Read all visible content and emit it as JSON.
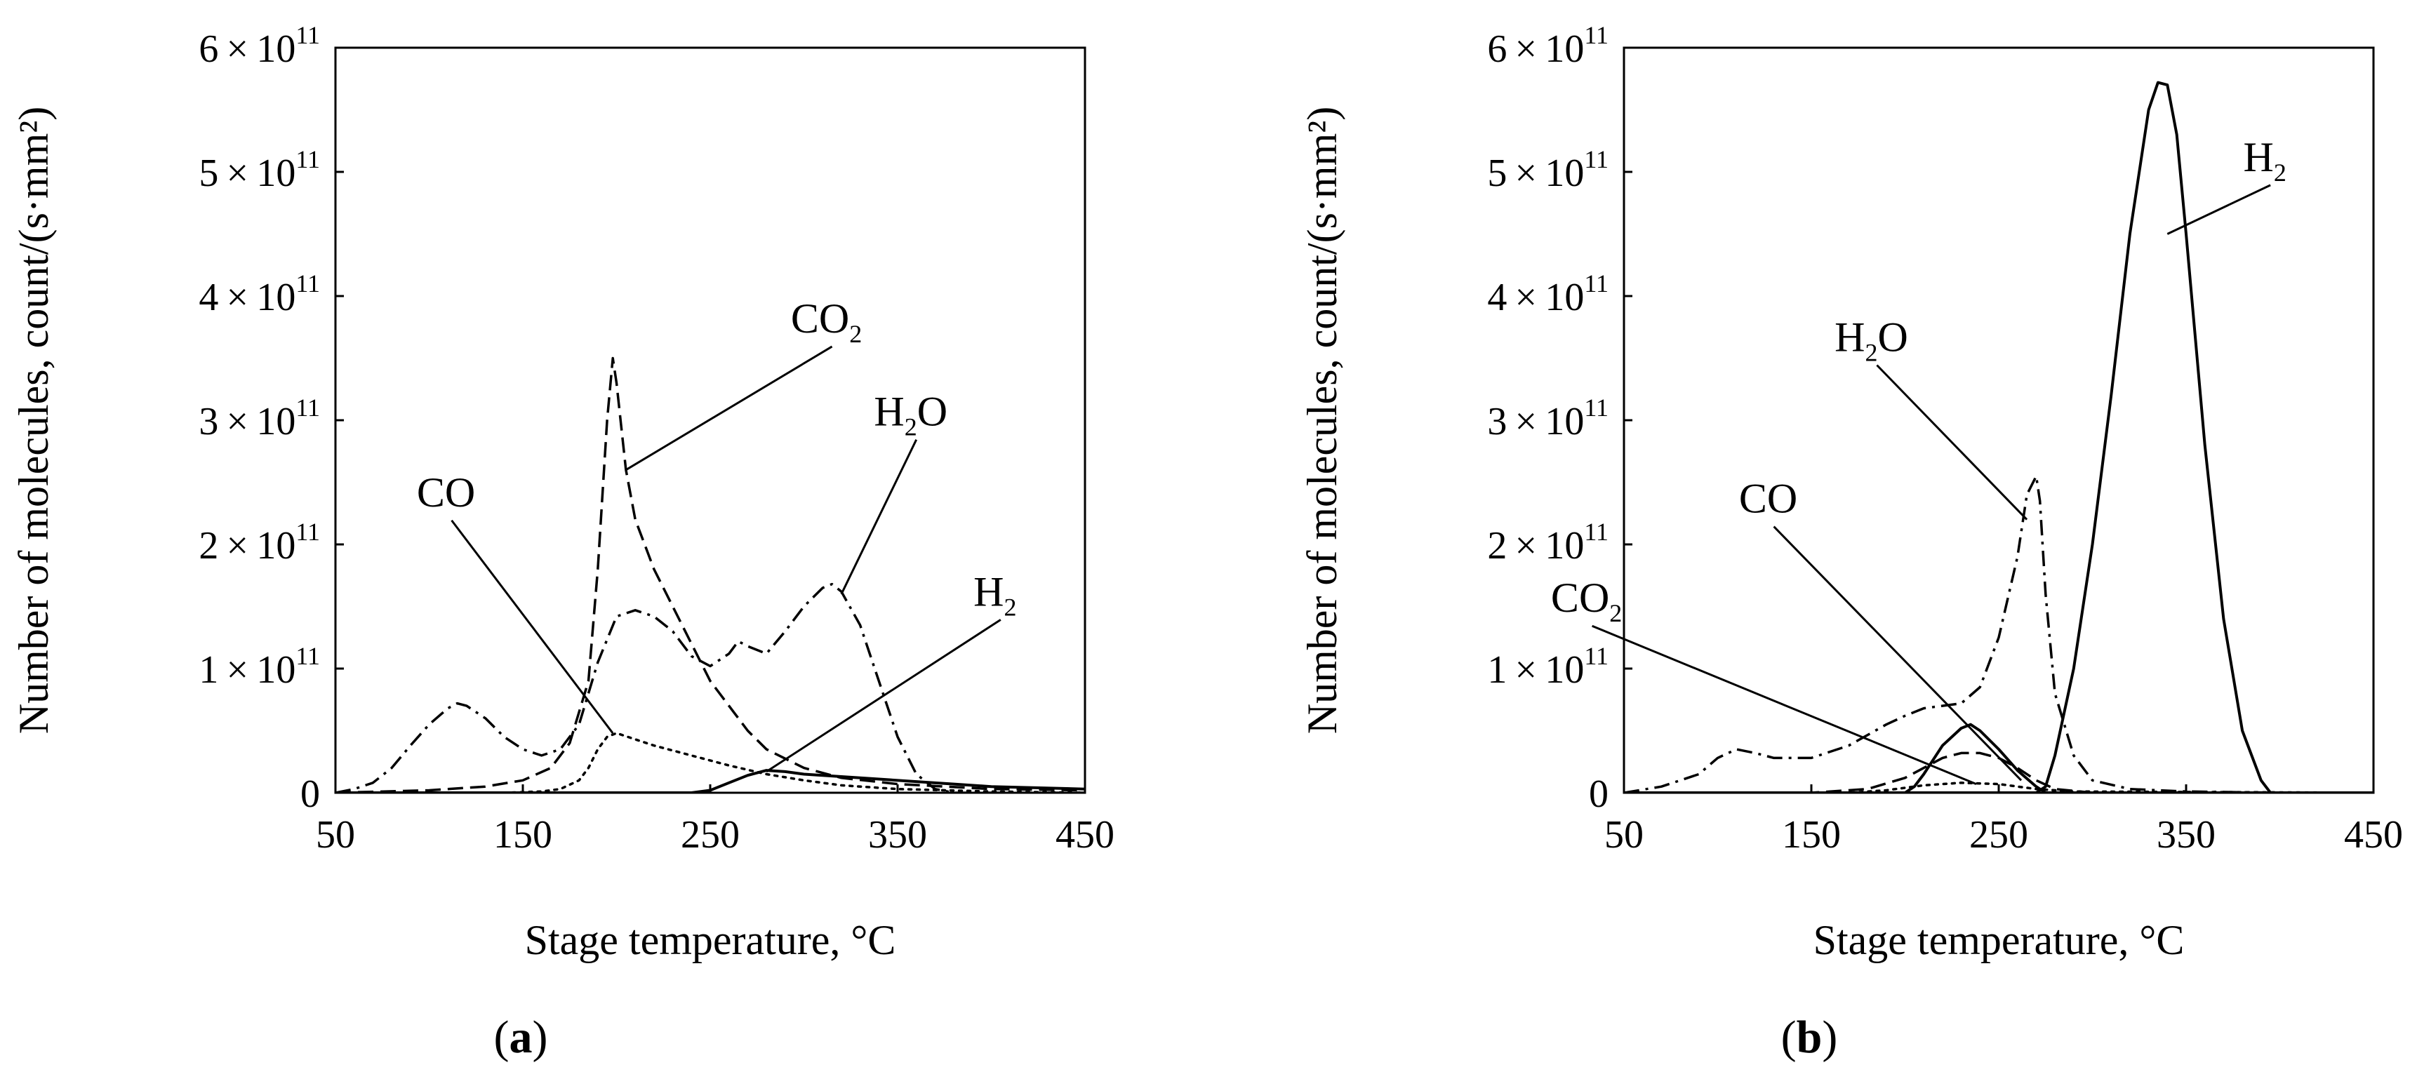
{
  "chart_data": [
    {
      "type": "line",
      "panel_label": "(a)",
      "panel_letter": "a",
      "xlabel": "Stage temperature, °C",
      "ylabel": "Number of molecules, count/(s·mm²)",
      "xlim": [
        50,
        450
      ],
      "ylim": [
        0,
        600000000000.0
      ],
      "xticks": [
        50,
        150,
        250,
        350,
        450
      ],
      "ytick_values": [
        0,
        100000000000.0,
        200000000000.0,
        300000000000.0,
        400000000000.0,
        500000000000.0,
        600000000000.0
      ],
      "ytick_labels": [
        {
          "mant": "0",
          "exp": ""
        },
        {
          "mant": "1 × 10",
          "exp": "11"
        },
        {
          "mant": "2 × 10",
          "exp": "11"
        },
        {
          "mant": "3 × 10",
          "exp": "11"
        },
        {
          "mant": "4 × 10",
          "exp": "11"
        },
        {
          "mant": "5 × 10",
          "exp": "11"
        },
        {
          "mant": "6 × 10",
          "exp": "11"
        }
      ],
      "grid": false,
      "series": [
        {
          "name": "CO₂",
          "base": "CO",
          "sub": "2",
          "style": "dashed",
          "x": [
            50,
            100,
            130,
            150,
            165,
            175,
            185,
            190,
            195,
            198,
            200,
            205,
            210,
            220,
            230,
            240,
            250,
            260,
            270,
            280,
            300,
            320,
            350,
            400,
            450
          ],
          "y": [
            0,
            2000000000.0,
            5000000000.0,
            10000000000.0,
            20000000000.0,
            40000000000.0,
            90000000000.0,
            180000000000.0,
            300000000000.0,
            350000000000.0,
            330000000000.0,
            260000000000.0,
            220000000000.0,
            180000000000.0,
            150000000000.0,
            120000000000.0,
            90000000000.0,
            70000000000.0,
            50000000000.0,
            35000000000.0,
            20000000000.0,
            12000000000.0,
            7000000000.0,
            3000000000.0,
            2000000000.0
          ]
        },
        {
          "name": "CO",
          "base": "CO",
          "sub": "",
          "style": "dotted",
          "x": [
            50,
            140,
            160,
            170,
            180,
            185,
            190,
            195,
            200,
            210,
            220,
            240,
            260,
            280,
            300,
            320,
            350,
            400,
            450
          ],
          "y": [
            0,
            0,
            1000000000.0,
            3000000000.0,
            10000000000.0,
            20000000000.0,
            35000000000.0,
            45000000000.0,
            48000000000.0,
            43000000000.0,
            38000000000.0,
            30000000000.0,
            22000000000.0,
            15000000000.0,
            10000000000.0,
            6000000000.0,
            3000000000.0,
            1000000000.0,
            0
          ],
          "label_anchor": [
            198,
            48000000000.0
          ]
        },
        {
          "name": "H₂O",
          "base": "H",
          "sub": "2",
          "tail": "O",
          "style": "dashdot",
          "x": [
            50,
            60,
            70,
            80,
            90,
            100,
            110,
            115,
            120,
            130,
            140,
            150,
            160,
            170,
            180,
            190,
            200,
            210,
            220,
            230,
            240,
            250,
            260,
            265,
            270,
            280,
            290,
            300,
            310,
            315,
            320,
            330,
            340,
            350,
            360,
            370,
            380,
            400,
            450
          ],
          "y": [
            0,
            3000000000.0,
            8000000000.0,
            20000000000.0,
            38000000000.0,
            55000000000.0,
            68000000000.0,
            72000000000.0,
            70000000000.0,
            60000000000.0,
            45000000000.0,
            35000000000.0,
            30000000000.0,
            35000000000.0,
            55000000000.0,
            105000000000.0,
            142000000000.0,
            147000000000.0,
            142000000000.0,
            130000000000.0,
            110000000000.0,
            102000000000.0,
            112000000000.0,
            122000000000.0,
            118000000000.0,
            112000000000.0,
            130000000000.0,
            150000000000.0,
            165000000000.0,
            168000000000.0,
            162000000000.0,
            135000000000.0,
            90000000000.0,
            45000000000.0,
            15000000000.0,
            3000000000.0,
            0,
            0,
            0
          ],
          "label_anchor": [
            320,
            160000000000.0
          ]
        },
        {
          "name": "H₂",
          "base": "H",
          "sub": "2",
          "style": "solid",
          "x": [
            50,
            240,
            250,
            260,
            270,
            280,
            290,
            300,
            320,
            340,
            360,
            380,
            400,
            450
          ],
          "y": [
            0,
            0,
            2000000000.0,
            8000000000.0,
            14000000000.0,
            18000000000.0,
            17000000000.0,
            15000000000.0,
            13000000000.0,
            11000000000.0,
            9000000000.0,
            7000000000.0,
            5000000000.0,
            3000000000.0
          ],
          "label_anchor": [
            280,
            17000000000.0
          ]
        }
      ],
      "labels": [
        {
          "base": "CO",
          "sub": "2",
          "anchor": [
            205,
            260000000000.0
          ],
          "text_at": [
            315,
            365000000000.0
          ]
        },
        {
          "base": "CO",
          "sub": "",
          "anchor": [
            198,
            48000000000.0
          ],
          "text_at": [
            112,
            225000000000.0
          ]
        },
        {
          "base": "H",
          "sub": "2",
          "tail": "O",
          "anchor": [
            320,
            160000000000.0
          ],
          "text_at": [
            360,
            290000000000.0
          ]
        },
        {
          "base": "H",
          "sub": "2",
          "anchor": [
            280,
            17000000000.0
          ],
          "text_at": [
            405,
            145000000000.0
          ]
        }
      ]
    },
    {
      "type": "line",
      "panel_label": "(b)",
      "panel_letter": "b",
      "xlabel": "Stage temperature, °C",
      "ylabel": "Number of molecules, count/(s·mm²)",
      "xlim": [
        50,
        450
      ],
      "ylim": [
        0,
        600000000000.0
      ],
      "xticks": [
        50,
        150,
        250,
        350,
        450
      ],
      "ytick_values": [
        0,
        100000000000.0,
        200000000000.0,
        300000000000.0,
        400000000000.0,
        500000000000.0,
        600000000000.0
      ],
      "ytick_labels": [
        {
          "mant": "0",
          "exp": ""
        },
        {
          "mant": "1 × 10",
          "exp": "11"
        },
        {
          "mant": "2 × 10",
          "exp": "11"
        },
        {
          "mant": "3 × 10",
          "exp": "11"
        },
        {
          "mant": "4 × 10",
          "exp": "11"
        },
        {
          "mant": "5 × 10",
          "exp": "11"
        },
        {
          "mant": "6 × 10",
          "exp": "11"
        }
      ],
      "grid": false,
      "series": [
        {
          "name": "H₂",
          "base": "H",
          "sub": "2",
          "style": "solid",
          "x": [
            50,
            270,
            275,
            280,
            290,
            300,
            310,
            320,
            330,
            335,
            340,
            345,
            350,
            360,
            370,
            380,
            390,
            395,
            400,
            450
          ],
          "y": [
            0,
            0,
            5000000000.0,
            30000000000.0,
            100000000000.0,
            200000000000.0,
            320000000000.0,
            450000000000.0,
            550000000000.0,
            572000000000.0,
            570000000000.0,
            530000000000.0,
            450000000000.0,
            280000000000.0,
            140000000000.0,
            50000000000.0,
            10000000000.0,
            0,
            0,
            0
          ]
        },
        {
          "name": "H₂O",
          "base": "H",
          "sub": "2",
          "tail": "O",
          "style": "dashdot",
          "x": [
            50,
            70,
            90,
            100,
            110,
            120,
            130,
            150,
            170,
            190,
            200,
            210,
            220,
            230,
            240,
            250,
            260,
            265,
            270,
            272,
            275,
            280,
            290,
            300,
            320,
            350,
            400,
            450
          ],
          "y": [
            0,
            5000000000.0,
            15000000000.0,
            28000000000.0,
            35000000000.0,
            32000000000.0,
            28000000000.0,
            28000000000.0,
            38000000000.0,
            55000000000.0,
            62000000000.0,
            68000000000.0,
            70000000000.0,
            72000000000.0,
            85000000000.0,
            125000000000.0,
            190000000000.0,
            240000000000.0,
            255000000000.0,
            235000000000.0,
            160000000000.0,
            80000000000.0,
            30000000000.0,
            10000000000.0,
            3000000000.0,
            1000000000.0,
            0,
            0
          ]
        },
        {
          "name": "CO",
          "base": "CO",
          "sub": "",
          "style": "solid",
          "x": [
            50,
            200,
            205,
            210,
            220,
            230,
            235,
            240,
            250,
            260,
            270,
            275,
            450
          ],
          "y": [
            0,
            0,
            5000000000.0,
            15000000000.0,
            38000000000.0,
            52000000000.0,
            55000000000.0,
            50000000000.0,
            35000000000.0,
            18000000000.0,
            5000000000.0,
            0,
            0
          ]
        },
        {
          "name": "CO₂",
          "base": "CO",
          "sub": "2",
          "style": "dashed",
          "x": [
            50,
            150,
            180,
            200,
            210,
            220,
            230,
            240,
            250,
            260,
            270,
            280,
            300,
            450
          ],
          "y": [
            0,
            0,
            3000000000.0,
            12000000000.0,
            20000000000.0,
            28000000000.0,
            32000000000.0,
            32000000000.0,
            28000000000.0,
            20000000000.0,
            10000000000.0,
            3000000000.0,
            0,
            0
          ]
        },
        {
          "name": "",
          "base": "",
          "sub": "",
          "style": "dotted",
          "x": [
            50,
            170,
            190,
            210,
            230,
            250,
            270,
            290,
            450
          ],
          "y": [
            0,
            0,
            2000000000.0,
            6000000000.0,
            8000000000.0,
            7000000000.0,
            3000000000.0,
            1000000000.0,
            0
          ]
        }
      ],
      "labels": [
        {
          "base": "H",
          "sub": "2",
          "anchor": [
            340,
            450000000000.0
          ],
          "text_at": [
            395,
            495000000000.0
          ]
        },
        {
          "base": "H",
          "sub": "2",
          "tail": "O",
          "anchor": [
            265,
            220000000000.0
          ],
          "text_at": [
            185,
            350000000000.0
          ]
        },
        {
          "base": "CO",
          "sub": "",
          "anchor": [
            262,
            10000000000.0
          ],
          "text_at": [
            130,
            220000000000.0
          ]
        },
        {
          "base": "CO",
          "sub": "2",
          "anchor": [
            238,
            7000000000.0
          ],
          "text_at": [
            33,
            140000000000.0
          ]
        }
      ]
    }
  ]
}
